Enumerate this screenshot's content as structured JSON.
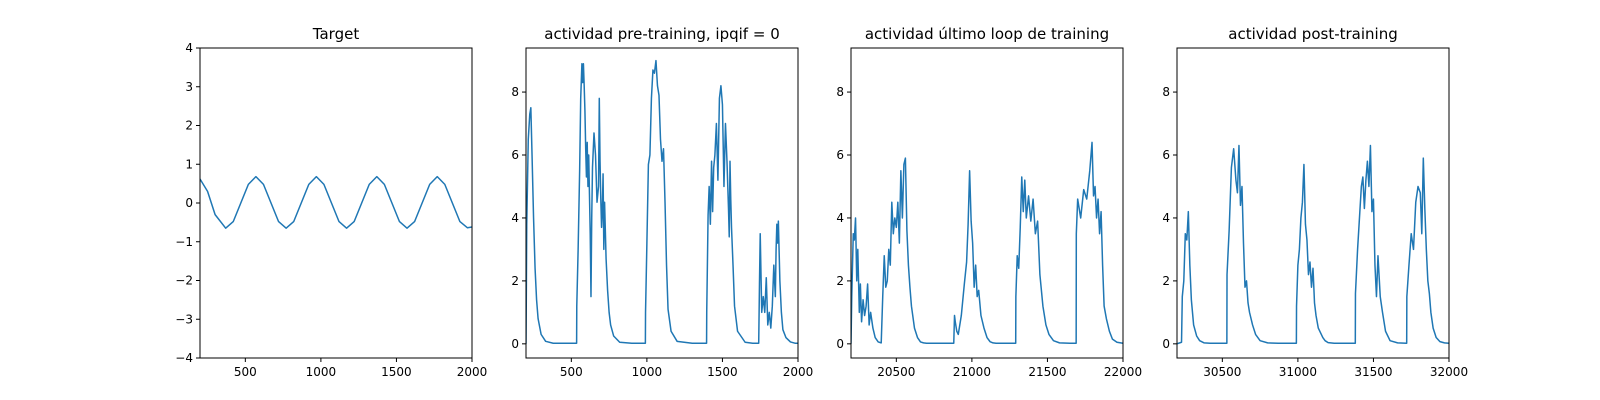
{
  "chart_data": [
    {
      "type": "line",
      "title": "Target",
      "xlim": [
        200,
        2000
      ],
      "ylim": [
        -4,
        4
      ],
      "xticks": [
        500,
        1000,
        1500,
        2000
      ],
      "yticks": [
        -4,
        -3,
        -2,
        -1,
        0,
        1,
        2,
        3,
        4
      ],
      "color": "#1f77b4",
      "series": [
        {
          "x": [
            200,
            250,
            300,
            370,
            420,
            470,
            520,
            570,
            620,
            670,
            720,
            770,
            820,
            870,
            920,
            970,
            1020,
            1070,
            1120,
            1170,
            1220,
            1270,
            1320,
            1370,
            1420,
            1470,
            1520,
            1570,
            1620,
            1670,
            1720,
            1770,
            1820,
            1870,
            1920,
            1970,
            2000
          ],
          "y": [
            0.62,
            0.3,
            -0.3,
            -0.65,
            -0.48,
            0.0,
            0.48,
            0.68,
            0.48,
            0.0,
            -0.48,
            -0.65,
            -0.48,
            0.0,
            0.48,
            0.68,
            0.48,
            0.0,
            -0.48,
            -0.65,
            -0.48,
            0.0,
            0.48,
            0.68,
            0.48,
            0.0,
            -0.48,
            -0.65,
            -0.48,
            0.0,
            0.48,
            0.68,
            0.48,
            0.0,
            -0.48,
            -0.64,
            -0.62
          ]
        }
      ]
    },
    {
      "type": "line",
      "title": "actividad pre-training, ipqif = 0",
      "xlim": [
        200,
        2000
      ],
      "ylim": [
        -0.45,
        9.4
      ],
      "xticks": [
        500,
        1000,
        1500,
        2000
      ],
      "yticks": [
        0,
        2,
        4,
        6,
        8
      ],
      "color": "#1f77b4",
      "series": [
        {
          "x": [
            200,
            205,
            215,
            225,
            232,
            240,
            250,
            260,
            270,
            280,
            300,
            330,
            380,
            450,
            535,
            536,
            545,
            555,
            562,
            570,
            575,
            580,
            585,
            590,
            595,
            600,
            605,
            610,
            615,
            625,
            630,
            635,
            640,
            650,
            660,
            670,
            680,
            685,
            690,
            695,
            700,
            705,
            710,
            715,
            720,
            730,
            740,
            750,
            760,
            780,
            820,
            900,
            990,
            991,
            1000,
            1010,
            1020,
            1030,
            1040,
            1050,
            1060,
            1070,
            1080,
            1090,
            1100,
            1110,
            1120,
            1130,
            1140,
            1160,
            1200,
            1300,
            1395,
            1396,
            1405,
            1412,
            1420,
            1428,
            1435,
            1442,
            1450,
            1460,
            1470,
            1480,
            1490,
            1500,
            1510,
            1520,
            1530,
            1540,
            1545,
            1550,
            1555,
            1560,
            1570,
            1580,
            1600,
            1650,
            1700,
            1740,
            1745,
            1750,
            1760,
            1770,
            1780,
            1790,
            1800,
            1810,
            1820,
            1830,
            1840,
            1850,
            1855,
            1860,
            1865,
            1870,
            1880,
            1890,
            1900,
            1920,
            1950,
            1980,
            2000
          ],
          "y": [
            0.0,
            3.8,
            6.5,
            7.3,
            7.5,
            6.0,
            4.0,
            2.4,
            1.4,
            0.8,
            0.3,
            0.08,
            0.02,
            0.02,
            0.02,
            1.2,
            3.0,
            5.5,
            7.8,
            8.9,
            8.3,
            8.9,
            8.2,
            7.4,
            6.2,
            5.3,
            6.4,
            5.0,
            6.0,
            3.5,
            1.5,
            4.0,
            5.6,
            6.7,
            6.0,
            4.5,
            5.0,
            7.8,
            5.8,
            4.6,
            3.7,
            4.2,
            5.4,
            3.0,
            4.5,
            2.7,
            1.7,
            1.0,
            0.6,
            0.25,
            0.05,
            0.02,
            0.02,
            1.0,
            3.2,
            5.7,
            6.0,
            7.8,
            8.7,
            8.6,
            9.0,
            8.2,
            7.9,
            6.5,
            5.8,
            6.2,
            4.5,
            2.5,
            1.1,
            0.4,
            0.08,
            0.02,
            0.02,
            1.0,
            4.1,
            5.0,
            3.8,
            5.8,
            4.2,
            5.6,
            6.0,
            7.0,
            5.2,
            7.8,
            8.2,
            7.6,
            5.0,
            7.0,
            5.8,
            4.3,
            3.4,
            5.8,
            4.6,
            3.7,
            2.5,
            1.2,
            0.4,
            0.05,
            0.02,
            0.02,
            1.9,
            3.5,
            1.0,
            1.5,
            1.0,
            2.1,
            0.6,
            1.0,
            0.5,
            1.2,
            2.5,
            1.5,
            3.0,
            3.8,
            3.2,
            3.9,
            2.0,
            1.0,
            0.45,
            0.2,
            0.06,
            0.02,
            0.02
          ]
        }
      ]
    },
    {
      "type": "line",
      "title": "actividad último loop de training",
      "xlim": [
        20200,
        22000
      ],
      "ylim": [
        -0.45,
        9.4
      ],
      "xticks": [
        20500,
        21000,
        21500,
        22000
      ],
      "yticks": [
        0,
        2,
        4,
        6,
        8
      ],
      "color": "#1f77b4",
      "series": [
        {
          "x": [
            20200,
            20205,
            20215,
            20222,
            20230,
            20238,
            20245,
            20255,
            20262,
            20270,
            20280,
            20290,
            20300,
            20310,
            20320,
            20330,
            20345,
            20360,
            20380,
            20400,
            20410,
            20420,
            20430,
            20440,
            20450,
            20460,
            20470,
            20480,
            20490,
            20500,
            20510,
            20520,
            20530,
            20540,
            20550,
            20560,
            20570,
            20580,
            20590,
            20600,
            20620,
            20640,
            20660,
            20680,
            20700,
            20720,
            20740,
            20760,
            20780,
            20800,
            20820,
            20850,
            20880,
            20885,
            20890,
            20900,
            20910,
            20930,
            20950,
            20965,
            20975,
            20985,
            20995,
            21005,
            21015,
            21025,
            21035,
            21045,
            21060,
            21080,
            21100,
            21120,
            21140,
            21160,
            21200,
            21250,
            21290,
            21291,
            21300,
            21310,
            21320,
            21330,
            21340,
            21350,
            21360,
            21375,
            21390,
            21405,
            21420,
            21435,
            21450,
            21470,
            21490,
            21510,
            21540,
            21580,
            21650,
            21690,
            21691,
            21700,
            21720,
            21740,
            21760,
            21780,
            21795,
            21805,
            21815,
            21825,
            21835,
            21845,
            21855,
            21865,
            21875,
            21890,
            21910,
            21930,
            21960,
            22000
          ],
          "y": [
            0.0,
            1.5,
            3.5,
            3.3,
            4.0,
            2.0,
            3.0,
            1.0,
            1.9,
            0.7,
            1.4,
            0.9,
            1.2,
            1.9,
            0.6,
            1.0,
            0.5,
            0.2,
            0.06,
            0.03,
            1.5,
            2.8,
            1.8,
            2.0,
            3.0,
            2.5,
            4.5,
            3.5,
            4.0,
            3.7,
            4.5,
            3.2,
            5.5,
            4.0,
            5.7,
            5.9,
            3.6,
            2.5,
            1.8,
            1.2,
            0.5,
            0.2,
            0.06,
            0.03,
            0.02,
            0.02,
            0.02,
            0.02,
            0.02,
            0.02,
            0.02,
            0.02,
            0.02,
            0.9,
            0.7,
            0.4,
            0.3,
            0.9,
            1.9,
            2.6,
            3.8,
            5.5,
            3.9,
            3.2,
            1.8,
            2.5,
            1.5,
            1.7,
            0.9,
            0.5,
            0.2,
            0.07,
            0.03,
            0.02,
            0.02,
            0.02,
            0.02,
            1.5,
            2.8,
            2.4,
            3.7,
            5.3,
            4.2,
            5.2,
            4.0,
            4.7,
            3.9,
            4.6,
            3.5,
            3.9,
            2.2,
            1.2,
            0.6,
            0.3,
            0.1,
            0.03,
            0.02,
            0.02,
            3.5,
            4.6,
            4.0,
            4.9,
            4.6,
            5.5,
            6.4,
            4.7,
            5.0,
            4.0,
            4.6,
            3.5,
            4.2,
            2.5,
            1.2,
            0.8,
            0.4,
            0.15,
            0.05,
            0.02
          ]
        }
      ]
    },
    {
      "type": "line",
      "title": "actividad post-training",
      "xlim": [
        30200,
        32000
      ],
      "ylim": [
        -0.45,
        9.4
      ],
      "xticks": [
        30500,
        31000,
        31500,
        32000
      ],
      "yticks": [
        0,
        2,
        4,
        6,
        8
      ],
      "color": "#1f77b4",
      "series": [
        {
          "x": [
            30200,
            30230,
            30235,
            30245,
            30255,
            30265,
            30275,
            30285,
            30295,
            30310,
            30330,
            30350,
            30380,
            30420,
            30470,
            30530,
            30531,
            30545,
            30560,
            30575,
            30590,
            30600,
            30610,
            30620,
            30630,
            30640,
            30650,
            30660,
            30670,
            30680,
            30700,
            30720,
            30750,
            30800,
            30870,
            30990,
            30991,
            31000,
            31010,
            31020,
            31030,
            31040,
            31050,
            31060,
            31070,
            31080,
            31090,
            31100,
            31110,
            31120,
            31135,
            31150,
            31165,
            31180,
            31200,
            31240,
            31300,
            31380,
            31381,
            31395,
            31410,
            31420,
            31430,
            31440,
            31450,
            31460,
            31470,
            31480,
            31490,
            31500,
            31510,
            31520,
            31530,
            31545,
            31560,
            31580,
            31610,
            31660,
            31720,
            31721,
            31735,
            31750,
            31765,
            31780,
            31795,
            31810,
            31820,
            31830,
            31840,
            31850,
            31860,
            31870,
            31880,
            31895,
            31915,
            31940,
            31970,
            32000
          ],
          "y": [
            0.0,
            0.05,
            1.5,
            2.0,
            3.5,
            3.3,
            4.2,
            2.5,
            1.4,
            0.6,
            0.25,
            0.1,
            0.03,
            0.02,
            0.02,
            0.02,
            2.2,
            3.6,
            5.6,
            6.2,
            5.2,
            4.8,
            6.3,
            4.4,
            5.0,
            3.2,
            1.8,
            2.0,
            1.3,
            1.0,
            0.6,
            0.3,
            0.1,
            0.03,
            0.02,
            0.02,
            1.2,
            2.5,
            3.0,
            4.0,
            4.5,
            5.7,
            3.8,
            3.3,
            2.2,
            2.6,
            1.8,
            2.4,
            1.3,
            0.9,
            0.5,
            0.35,
            0.2,
            0.1,
            0.04,
            0.02,
            0.02,
            0.02,
            1.6,
            3.0,
            4.2,
            5.0,
            5.3,
            4.3,
            5.2,
            5.8,
            5.0,
            6.3,
            4.2,
            4.6,
            2.5,
            1.5,
            2.8,
            1.5,
            1.0,
            0.4,
            0.1,
            0.03,
            0.02,
            1.5,
            2.5,
            3.5,
            3.0,
            4.5,
            5.0,
            4.8,
            3.5,
            5.9,
            4.3,
            3.0,
            2.0,
            1.6,
            1.0,
            0.5,
            0.2,
            0.07,
            0.03,
            0.02
          ]
        }
      ]
    }
  ]
}
